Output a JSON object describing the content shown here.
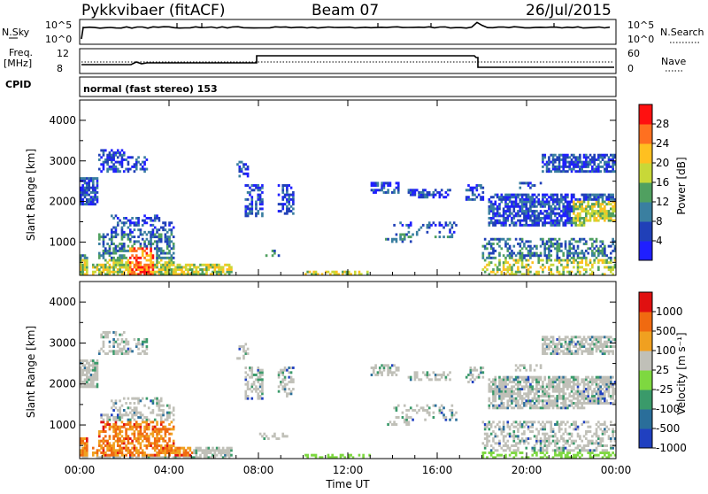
{
  "header": {
    "station": "Pykkvibaer (fitACF)",
    "beam": "Beam 07",
    "date": "26/Jul/2015"
  },
  "panels": {
    "nsky_label": "N.Sky",
    "nsky_ticks": [
      "10^5",
      "10^0"
    ],
    "nsearch_label": "N.Search",
    "nsearch_ticks": [
      "10^5",
      "10^0"
    ],
    "freq_label_1": "Freq.",
    "freq_label_2": "[MHz]",
    "freq_ticks": [
      "12",
      "8"
    ],
    "nave_label": "Nave",
    "nave_ticks": [
      "60",
      "0"
    ],
    "cpid_label": "CPID",
    "cpid_value": "normal (fast stereo) 153"
  },
  "icons": {
    "nsearch_legend": "dotted-line",
    "nave_legend": "dotted-line"
  },
  "chart_data": [
    {
      "type": "heatmap",
      "quantity": "Power",
      "ylabel": "Slant Range [km]",
      "ylim": [
        180,
        4500
      ],
      "yticks": [
        "1000",
        "2000",
        "3000",
        "4000"
      ],
      "colorbar_label": "Power [dB]",
      "colorbar_ticks": [
        "4",
        "8",
        "12",
        "16",
        "20",
        "24",
        "28"
      ],
      "colorbar_range": [
        0,
        32
      ],
      "colormap": [
        "#1f1fff",
        "#2040b8",
        "#3a7fa0",
        "#50a060",
        "#c8d838",
        "#ffc020",
        "#ff7020",
        "#ff1010"
      ]
    },
    {
      "type": "heatmap",
      "quantity": "Velocity",
      "ylabel": "Slant Range [km]",
      "ylim": [
        180,
        4500
      ],
      "yticks": [
        "1000",
        "2000",
        "3000",
        "4000"
      ],
      "colorbar_label": "Velocity [m s⁻¹]",
      "colorbar_ticks": [
        "1000",
        "500",
        "100",
        "25",
        "-25",
        "-100",
        "-500",
        "-1000"
      ],
      "colormap": [
        "#2040c0",
        "#2a6e9a",
        "#3a9a6a",
        "#7ed840",
        "#c0c0b8",
        "#f0a020",
        "#f06a10",
        "#e01010"
      ]
    }
  ],
  "xaxis": {
    "label": "Time UT",
    "ticks": [
      "00:00",
      "04:00",
      "08:00",
      "12:00",
      "16:00",
      "20:00",
      "00:00"
    ]
  }
}
